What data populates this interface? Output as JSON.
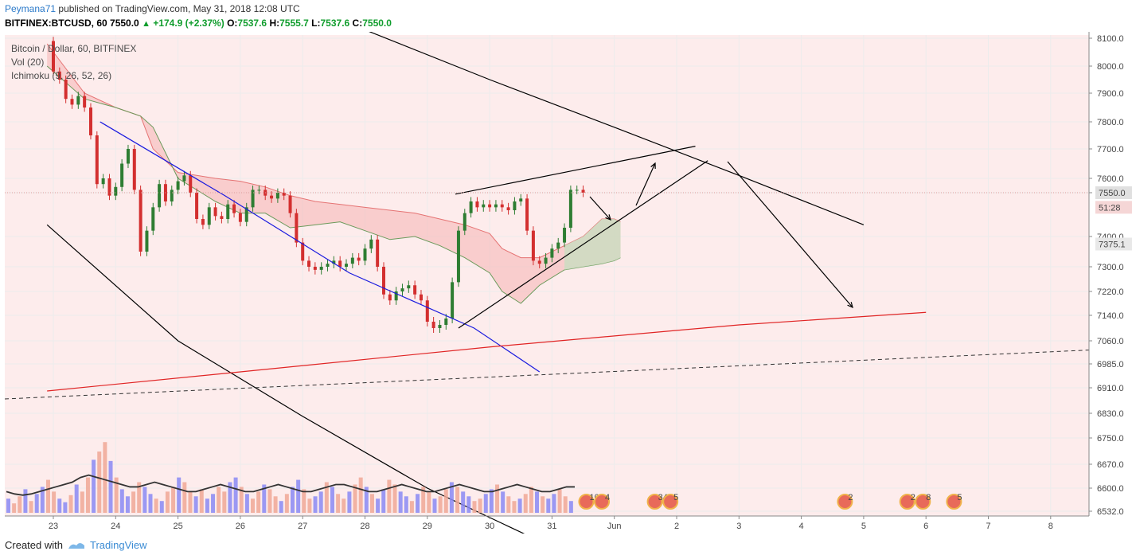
{
  "header": {
    "user": "Peymana71",
    "published": "published on TradingView.com, May 31, 2018 12:08 UTC",
    "symbol": "BITFINEX:BTCUSD, 60",
    "last": "7550.0",
    "change": "+174.9 (+2.37%)",
    "o_label": "O:",
    "o": "7537.6",
    "h_label": "H:",
    "h": "7555.7",
    "l_label": "L:",
    "l": "7537.6",
    "c_label": "C:",
    "c": "7550.0",
    "up_glyph": "▲"
  },
  "legend": {
    "title": "Bitcoin / Dollar, 60, BITFINEX",
    "vol": "Vol (20)",
    "ichimoku": "Ichimoku (9, 26, 52, 26)"
  },
  "footer": {
    "created_with": "Created with",
    "brand": "TradingView"
  },
  "chart_data": {
    "type": "candlestick",
    "timeframe": "60",
    "x_ticks": [
      "23",
      "24",
      "25",
      "26",
      "27",
      "28",
      "29",
      "30",
      "31",
      "Jun",
      "2",
      "3",
      "4",
      "5",
      "6",
      "7",
      "8"
    ],
    "y_ticks": [
      8100.0,
      8000.0,
      7900.0,
      7800.0,
      7700.0,
      7600.0,
      7550.0,
      7400.0,
      7300.0,
      7220.0,
      7140.0,
      7060.0,
      6985.0,
      6910.0,
      6830.0,
      6750.0,
      6670.0,
      6600.0,
      6532.0
    ],
    "y_tick_labels": [
      "8100.0",
      "8000.0",
      "7900.0",
      "7800.0",
      "7700.0",
      "7600.0",
      "7550.0",
      "7400.0",
      "7300.0",
      "7220.0",
      "7140.0",
      "7060.0",
      "6985.0",
      "6910.0",
      "6830.0",
      "6750.0",
      "6670.0",
      "6600.0",
      "6532.0"
    ],
    "price_labels": [
      {
        "text": "7550.0",
        "value": 7550.0,
        "color": "#e0e0e0"
      },
      {
        "text": "51:28",
        "value": 7500.0,
        "color": "#f5d6d6"
      },
      {
        "text": "7375.1",
        "value": 7375.1,
        "color": "#e8e8e8"
      }
    ],
    "current_price": 7550.0,
    "price_path": [
      [
        22.9,
        8090
      ],
      [
        23.0,
        7980
      ],
      [
        23.1,
        7950
      ],
      [
        23.2,
        7880
      ],
      [
        23.3,
        7860
      ],
      [
        23.4,
        7890
      ],
      [
        23.5,
        7850
      ],
      [
        23.6,
        7750
      ],
      [
        23.7,
        7580
      ],
      [
        23.8,
        7600
      ],
      [
        23.9,
        7540
      ],
      [
        24.0,
        7570
      ],
      [
        24.1,
        7650
      ],
      [
        24.2,
        7700
      ],
      [
        24.3,
        7560
      ],
      [
        24.4,
        7350
      ],
      [
        24.5,
        7420
      ],
      [
        24.6,
        7500
      ],
      [
        24.7,
        7580
      ],
      [
        24.8,
        7520
      ],
      [
        24.9,
        7560
      ],
      [
        25.0,
        7590
      ],
      [
        25.1,
        7610
      ],
      [
        25.2,
        7550
      ],
      [
        25.3,
        7460
      ],
      [
        25.4,
        7440
      ],
      [
        25.5,
        7500
      ],
      [
        25.6,
        7470
      ],
      [
        25.7,
        7460
      ],
      [
        25.8,
        7510
      ],
      [
        25.9,
        7480
      ],
      [
        26.0,
        7450
      ],
      [
        26.1,
        7500
      ],
      [
        26.2,
        7560
      ],
      [
        26.3,
        7560
      ],
      [
        26.4,
        7540
      ],
      [
        26.5,
        7530
      ],
      [
        26.6,
        7550
      ],
      [
        26.7,
        7540
      ],
      [
        26.8,
        7480
      ],
      [
        26.9,
        7380
      ],
      [
        27.0,
        7320
      ],
      [
        27.1,
        7300
      ],
      [
        27.2,
        7290
      ],
      [
        27.3,
        7300
      ],
      [
        27.4,
        7310
      ],
      [
        27.5,
        7320
      ],
      [
        27.6,
        7300
      ],
      [
        27.7,
        7310
      ],
      [
        27.8,
        7330
      ],
      [
        27.9,
        7320
      ],
      [
        28.0,
        7360
      ],
      [
        28.1,
        7390
      ],
      [
        28.2,
        7300
      ],
      [
        28.3,
        7210
      ],
      [
        28.4,
        7190
      ],
      [
        28.5,
        7220
      ],
      [
        28.6,
        7230
      ],
      [
        28.7,
        7240
      ],
      [
        28.8,
        7210
      ],
      [
        28.9,
        7190
      ],
      [
        29.0,
        7120
      ],
      [
        29.1,
        7100
      ],
      [
        29.2,
        7110
      ],
      [
        29.3,
        7130
      ],
      [
        29.4,
        7250
      ],
      [
        29.5,
        7420
      ],
      [
        29.6,
        7480
      ],
      [
        29.7,
        7520
      ],
      [
        29.8,
        7500
      ],
      [
        29.9,
        7510
      ],
      [
        30.0,
        7500
      ],
      [
        30.1,
        7510
      ],
      [
        30.2,
        7500
      ],
      [
        30.3,
        7490
      ],
      [
        30.4,
        7520
      ],
      [
        30.5,
        7530
      ],
      [
        30.6,
        7420
      ],
      [
        30.7,
        7320
      ],
      [
        30.8,
        7310
      ],
      [
        30.9,
        7330
      ],
      [
        31.0,
        7360
      ],
      [
        31.1,
        7380
      ],
      [
        31.2,
        7430
      ],
      [
        31.3,
        7560
      ],
      [
        31.4,
        7560
      ],
      [
        31.5,
        7550
      ]
    ],
    "ichimoku": {
      "span_a_upper": [
        [
          22.9,
          8080
        ],
        [
          23.5,
          7900
        ],
        [
          24.0,
          7850
        ],
        [
          24.4,
          7820
        ],
        [
          24.6,
          7700
        ],
        [
          25.0,
          7620
        ],
        [
          25.3,
          7610
        ],
        [
          25.6,
          7600
        ],
        [
          26.0,
          7590
        ],
        [
          26.4,
          7570
        ],
        [
          26.8,
          7540
        ],
        [
          27.2,
          7520
        ],
        [
          27.6,
          7510
        ],
        [
          28.0,
          7500
        ],
        [
          28.4,
          7490
        ],
        [
          28.8,
          7480
        ],
        [
          29.2,
          7460
        ],
        [
          29.6,
          7440
        ],
        [
          30.0,
          7410
        ],
        [
          30.2,
          7360
        ],
        [
          30.5,
          7330
        ],
        [
          30.8,
          7330
        ],
        [
          31.2,
          7370
        ],
        [
          31.5,
          7400
        ],
        [
          31.8,
          7460
        ],
        [
          32.0,
          7460
        ],
        [
          32.1,
          7450
        ]
      ],
      "span_b_lower": [
        [
          22.9,
          8000
        ],
        [
          23.5,
          7880
        ],
        [
          24.0,
          7850
        ],
        [
          24.4,
          7820
        ],
        [
          24.6,
          7780
        ],
        [
          25.0,
          7600
        ],
        [
          25.3,
          7560
        ],
        [
          25.6,
          7520
        ],
        [
          26.0,
          7480
        ],
        [
          26.4,
          7480
        ],
        [
          26.8,
          7430
        ],
        [
          27.2,
          7440
        ],
        [
          27.6,
          7450
        ],
        [
          28.0,
          7420
        ],
        [
          28.4,
          7390
        ],
        [
          28.8,
          7400
        ],
        [
          29.2,
          7370
        ],
        [
          29.6,
          7330
        ],
        [
          30.0,
          7280
        ],
        [
          30.2,
          7220
        ],
        [
          30.5,
          7180
        ],
        [
          30.8,
          7240
        ],
        [
          31.2,
          7290
        ],
        [
          31.5,
          7300
        ],
        [
          31.8,
          7310
        ],
        [
          32.0,
          7320
        ],
        [
          32.1,
          7330
        ]
      ]
    },
    "volume": {
      "max": 100,
      "values": [
        12,
        8,
        14,
        20,
        10,
        16,
        22,
        28,
        18,
        12,
        9,
        15,
        24,
        18,
        30,
        45,
        52,
        60,
        44,
        30,
        20,
        14,
        18,
        26,
        22,
        16,
        12,
        10,
        18,
        22,
        30,
        26,
        18,
        14,
        20,
        12,
        16,
        22,
        18,
        26,
        30,
        22,
        16,
        12,
        18,
        24,
        20,
        14,
        10,
        16,
        22,
        28,
        20,
        12,
        14,
        18,
        26,
        22,
        16,
        12,
        18,
        24,
        30,
        22,
        16,
        12,
        20,
        28,
        24,
        18,
        14,
        10,
        16,
        22,
        18,
        12,
        14,
        20,
        26,
        22,
        18,
        14,
        10,
        12,
        16,
        20,
        24,
        18,
        14,
        10,
        12,
        16,
        22,
        18,
        14,
        12,
        16,
        20,
        14,
        10
      ],
      "vol_ma": [
        18,
        16,
        15,
        16,
        18,
        20,
        22,
        24,
        26,
        30,
        32,
        30,
        28,
        26,
        24,
        22,
        22,
        24,
        26,
        24,
        22,
        20,
        18,
        18,
        20,
        22,
        24,
        22,
        20,
        18,
        18,
        20,
        22,
        24,
        22,
        20,
        18,
        18,
        20,
        22,
        24,
        24,
        22,
        20,
        18,
        18,
        20,
        22,
        24,
        22,
        20,
        18,
        18,
        20,
        22,
        24,
        22,
        20,
        18,
        18,
        20,
        22,
        24,
        22,
        20,
        18,
        18,
        20,
        22,
        22
      ]
    },
    "trend_lines": [
      {
        "color": "#1a1adf",
        "points": [
          [
            23.75,
            7800
          ],
          [
            25.75,
            7540
          ],
          [
            27.75,
            7280
          ],
          [
            29.75,
            7100
          ],
          [
            30.8,
            6960
          ]
        ]
      },
      {
        "color": "#000000",
        "points": [
          [
            22.9,
            7440
          ],
          [
            25.0,
            7060
          ],
          [
            27.0,
            6820
          ],
          [
            29.0,
            6600
          ],
          [
            31.0,
            6420
          ]
        ]
      },
      {
        "color": "#000000",
        "points": [
          [
            28.0,
            8130
          ],
          [
            30.0,
            7950
          ],
          [
            32.0,
            7780
          ],
          [
            34.0,
            7610
          ],
          [
            36.0,
            7440
          ]
        ]
      },
      {
        "color": "#e02424",
        "points": [
          [
            22.9,
            6900
          ],
          [
            26.0,
            6960
          ],
          [
            30.0,
            7040
          ],
          [
            34.0,
            7110
          ],
          [
            37.0,
            7150
          ]
        ]
      }
    ],
    "annotations": [
      {
        "text": "10",
        "x": 31.55
      },
      {
        "text": "4",
        "x": 31.8
      },
      {
        "text": "34",
        "x": 32.65
      },
      {
        "text": "5",
        "x": 32.9
      },
      {
        "text": "2",
        "x": 35.7
      },
      {
        "text": "2",
        "x": 36.7
      },
      {
        "text": "8",
        "x": 36.95
      },
      {
        "text": "5",
        "x": 37.45
      }
    ],
    "grid": true,
    "colors": {
      "up": "#2e7d32",
      "down": "#d32f2f",
      "cloud_bear": "#f5b5b5",
      "cloud_bull": "#c9ddc0",
      "vol_up": "#8a8af5",
      "vol_down": "#f0a896",
      "grid": "#ececec",
      "bg_tint": "#fdecec"
    }
  }
}
